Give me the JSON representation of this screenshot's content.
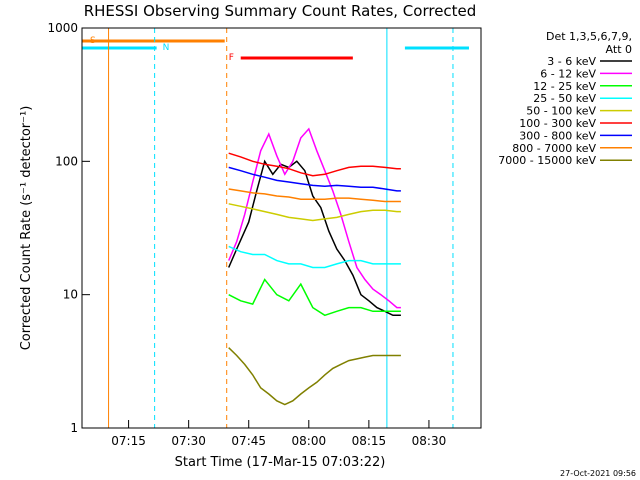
{
  "chart_data": {
    "type": "line",
    "title": "RHESSI Observing Summary Count Rates, Corrected",
    "xlabel": "Start Time (17-Mar-15 07:03:22)",
    "ylabel": "Corrected Count Rate (s⁻¹ detector⁻¹)",
    "x_unit": "minutes of 17-Mar-15, starting 07:03:22",
    "xlim": [
      "07:03:22",
      "08:43:00"
    ],
    "ylim": [
      1,
      1000
    ],
    "yscale": "log",
    "grid": false,
    "x_ticks": [
      "07:15",
      "07:30",
      "07:45",
      "08:00",
      "08:15",
      "08:30"
    ],
    "y_ticks": [
      1,
      10,
      100,
      1000
    ],
    "legend_position": "right",
    "legend_header": [
      "Det 1,3,5,6,7,9,",
      "Att 0"
    ],
    "footer_date": "27-Oct-2021 09:56",
    "colors": {
      "S": "#ff8000",
      "N": "#00e0ff",
      "F": "#ff0000",
      "attenuator": "#ff8000"
    },
    "flags": {
      "S": {
        "label": "S",
        "color": "#ff8000",
        "segments": [
          [
            "07:03:22",
            "07:39:00"
          ]
        ]
      },
      "N": {
        "label": "N",
        "color": "#00e0ff",
        "segments": [
          [
            "07:03:22",
            "07:22:00"
          ],
          [
            "08:24:00",
            "08:40:00"
          ]
        ]
      },
      "F": {
        "label": "F",
        "color": "#ff0000",
        "segments": [
          [
            "07:43:00",
            "08:11:00"
          ]
        ]
      }
    },
    "vertical_lines": [
      {
        "time": "07:10:00",
        "color": "#ff8000",
        "style": "solid"
      },
      {
        "time": "07:21:30",
        "color": "#00e0ff",
        "style": "dashed"
      },
      {
        "time": "07:39:30",
        "color": "#ff8000",
        "style": "dashed"
      },
      {
        "time": "08:19:30",
        "color": "#00e0ff",
        "style": "solid"
      },
      {
        "time": "08:36:00",
        "color": "#00e0ff",
        "style": "dashed"
      }
    ],
    "series": [
      {
        "name": "3 - 6 keV",
        "color": "#000000",
        "x": [
          "07:40",
          "07:42",
          "07:45",
          "07:47",
          "07:49",
          "07:51",
          "07:53",
          "07:55",
          "07:57",
          "07:59",
          "08:01",
          "08:03",
          "08:05",
          "08:07",
          "08:09",
          "08:11",
          "08:13",
          "08:15",
          "08:17",
          "08:19",
          "08:21",
          "08:23"
        ],
        "y": [
          16,
          22,
          35,
          60,
          100,
          80,
          95,
          90,
          100,
          85,
          55,
          45,
          30,
          22,
          18,
          14,
          10,
          9,
          8,
          7.5,
          7,
          7
        ]
      },
      {
        "name": "6 - 12 keV",
        "color": "#ff00ff",
        "x": [
          "07:40",
          "07:42",
          "07:44",
          "07:46",
          "07:48",
          "07:50",
          "07:52",
          "07:54",
          "07:56",
          "07:58",
          "08:00",
          "08:02",
          "08:04",
          "08:06",
          "08:08",
          "08:10",
          "08:12",
          "08:14",
          "08:16",
          "08:18",
          "08:20",
          "08:22",
          "08:23"
        ],
        "y": [
          18,
          25,
          40,
          70,
          120,
          160,
          110,
          80,
          100,
          150,
          175,
          120,
          85,
          60,
          40,
          25,
          16,
          13,
          11,
          10,
          9,
          8,
          8
        ]
      },
      {
        "name": "12 - 25 keV",
        "color": "#00ff00",
        "x": [
          "07:40",
          "07:43",
          "07:46",
          "07:49",
          "07:52",
          "07:55",
          "07:58",
          "08:01",
          "08:04",
          "08:07",
          "08:10",
          "08:13",
          "08:16",
          "08:19",
          "08:22",
          "08:23"
        ],
        "y": [
          10,
          9,
          8.5,
          13,
          10,
          9,
          12,
          8,
          7,
          7.5,
          8,
          8,
          7.5,
          7.5,
          7.5,
          7.5
        ]
      },
      {
        "name": "25 - 50 keV",
        "color": "#00ffff",
        "x": [
          "07:40",
          "07:43",
          "07:46",
          "07:49",
          "07:52",
          "07:55",
          "07:58",
          "08:01",
          "08:04",
          "08:07",
          "08:10",
          "08:13",
          "08:16",
          "08:19",
          "08:22",
          "08:23"
        ],
        "y": [
          23,
          21,
          20,
          20,
          18,
          17,
          17,
          16,
          16,
          17,
          18,
          18,
          17,
          17,
          17,
          17
        ]
      },
      {
        "name": "50 - 100 keV",
        "color": "#cccc00",
        "x": [
          "07:40",
          "07:43",
          "07:46",
          "07:49",
          "07:52",
          "07:55",
          "07:58",
          "08:01",
          "08:04",
          "08:07",
          "08:10",
          "08:13",
          "08:16",
          "08:19",
          "08:22",
          "08:23"
        ],
        "y": [
          48,
          46,
          44,
          42,
          40,
          38,
          37,
          36,
          37,
          38,
          40,
          42,
          43,
          43,
          42,
          42
        ]
      },
      {
        "name": "100 - 300 keV",
        "color": "#ff0000",
        "x": [
          "07:40",
          "07:43",
          "07:46",
          "07:49",
          "07:52",
          "07:55",
          "07:58",
          "08:01",
          "08:04",
          "08:07",
          "08:10",
          "08:13",
          "08:16",
          "08:19",
          "08:22",
          "08:23"
        ],
        "y": [
          115,
          108,
          100,
          95,
          92,
          88,
          82,
          78,
          80,
          85,
          90,
          92,
          92,
          90,
          88,
          88
        ]
      },
      {
        "name": "300 - 800 keV",
        "color": "#0000ff",
        "x": [
          "07:40",
          "07:43",
          "07:46",
          "07:49",
          "07:52",
          "07:55",
          "07:58",
          "08:01",
          "08:04",
          "08:07",
          "08:10",
          "08:13",
          "08:16",
          "08:19",
          "08:22",
          "08:23"
        ],
        "y": [
          90,
          85,
          80,
          76,
          72,
          70,
          68,
          66,
          65,
          66,
          65,
          64,
          64,
          62,
          60,
          60
        ]
      },
      {
        "name": "800 - 7000 keV",
        "color": "#ff8000",
        "x": [
          "07:40",
          "07:43",
          "07:46",
          "07:49",
          "07:52",
          "07:55",
          "07:58",
          "08:01",
          "08:04",
          "08:07",
          "08:10",
          "08:13",
          "08:16",
          "08:19",
          "08:22",
          "08:23"
        ],
        "y": [
          62,
          60,
          58,
          57,
          55,
          54,
          52,
          52,
          52,
          53,
          53,
          52,
          51,
          50,
          50,
          50
        ]
      },
      {
        "name": "7000 - 15000 keV",
        "color": "#808000",
        "x": [
          "07:40",
          "07:42",
          "07:44",
          "07:46",
          "07:48",
          "07:50",
          "07:52",
          "07:54",
          "07:56",
          "07:58",
          "08:00",
          "08:02",
          "08:04",
          "08:06",
          "08:08",
          "08:10",
          "08:12",
          "08:14",
          "08:16",
          "08:18",
          "08:20",
          "08:22",
          "08:23"
        ],
        "y": [
          4,
          3.5,
          3,
          2.5,
          2,
          1.8,
          1.6,
          1.5,
          1.6,
          1.8,
          2,
          2.2,
          2.5,
          2.8,
          3,
          3.2,
          3.3,
          3.4,
          3.5,
          3.5,
          3.5,
          3.5,
          3.5
        ]
      }
    ]
  }
}
